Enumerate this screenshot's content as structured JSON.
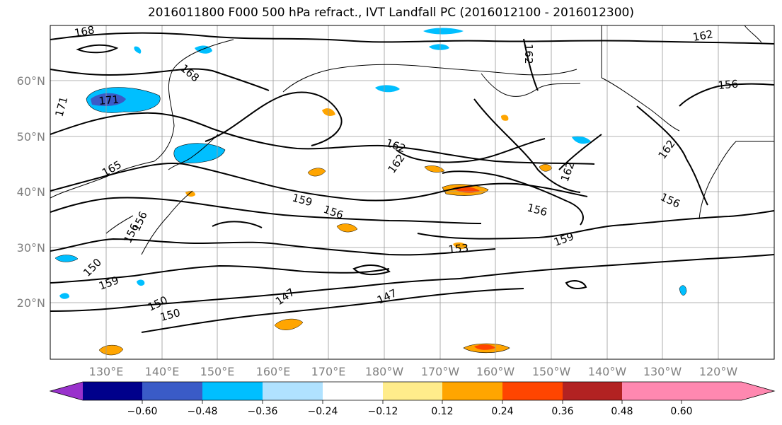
{
  "title": "2016011800 F000 500 hPa refract., IVT Landfall PC (2016012100 - 2016012300)",
  "lat_labels": [
    "60°N",
    "50°N",
    "40°N",
    "30°N",
    "20°N"
  ],
  "lon_labels": [
    "130°E",
    "140°E",
    "150°E",
    "160°E",
    "170°E",
    "180°W",
    "170°W",
    "160°W",
    "150°W",
    "140°W",
    "130°W",
    "120°W"
  ],
  "contour_labels": [
    "168",
    "162",
    "162",
    "156",
    "171",
    "168",
    "171",
    "165",
    "162",
    "162",
    "162",
    "162",
    "159",
    "156",
    "156",
    "156",
    "159",
    "153",
    "156",
    "156",
    "150",
    "159",
    "150",
    "150",
    "147",
    "147"
  ],
  "colorbar": {
    "tick_labels": [
      "−0.60",
      "−0.48",
      "−0.36",
      "−0.24",
      "−0.12",
      "0.12",
      "0.24",
      "0.36",
      "0.48",
      "0.60"
    ],
    "colors": [
      "#9932cc",
      "#00008b",
      "#3a5bc7",
      "#00bfff",
      "#b0e2ff",
      "#ffffff",
      "#ffec8b",
      "#ffa500",
      "#ff4500",
      "#b22222",
      "#ff88b0"
    ]
  }
}
